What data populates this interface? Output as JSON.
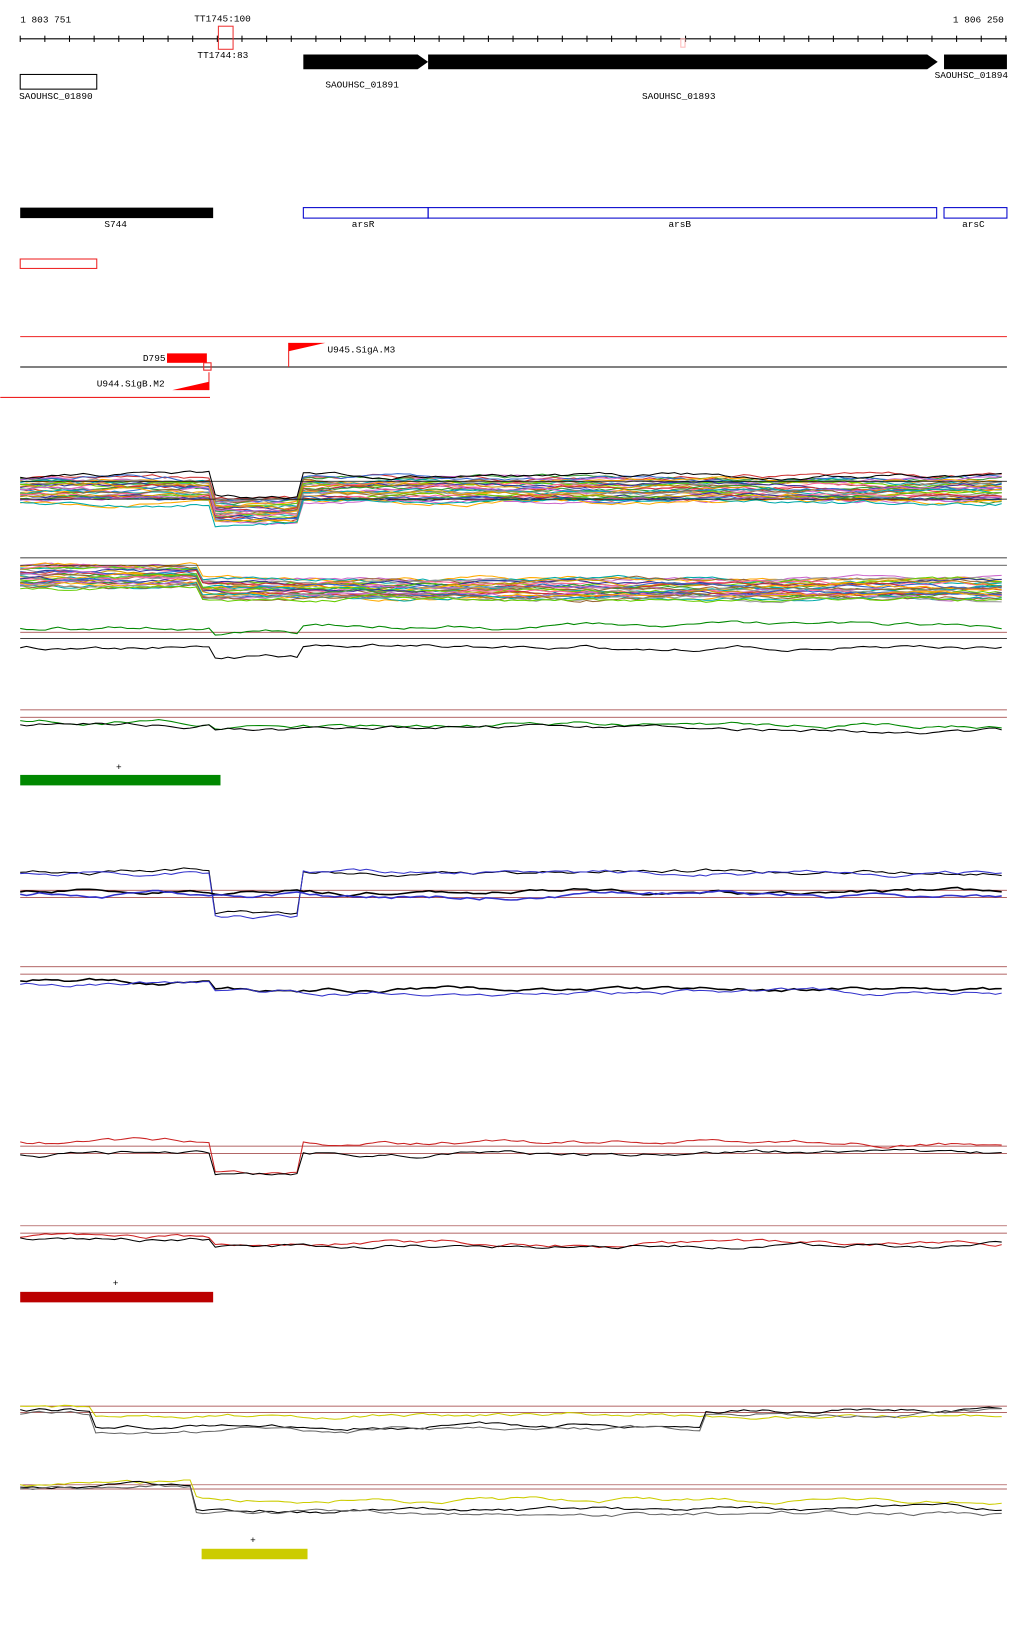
{
  "axis": {
    "start": "1 803 751",
    "end": "1 806 250"
  },
  "terminators": [
    {
      "label": "TT1745:100"
    },
    {
      "label": "TT1744:83"
    }
  ],
  "genes": [
    {
      "label": "SAOUHSC_01890"
    },
    {
      "label": "SAOUHSC_01891"
    },
    {
      "label": "SAOUHSC_01893"
    },
    {
      "label": "SAOUHSC_01894"
    }
  ],
  "features": [
    {
      "label": "S744"
    },
    {
      "label": "arsR"
    },
    {
      "label": "arsB"
    },
    {
      "label": "arsC"
    }
  ],
  "promoters": [
    {
      "label": "D795"
    },
    {
      "label": "U945.SigA.M3"
    },
    {
      "label": "U944.SigB.M2"
    }
  ],
  "markers": [
    "+",
    "+",
    "+"
  ]
}
